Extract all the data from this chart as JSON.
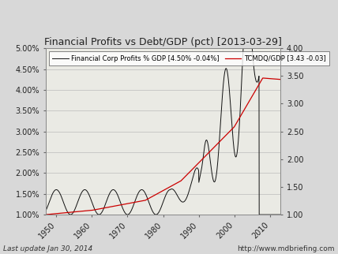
{
  "title": "Financial Profits vs Debt/GDP (pct) [2013-03-29]",
  "legend1": "Financial Corp Profits % GDP [4.50% -0.04%]",
  "legend2": "TCMDQ/GDP [3.43 -0.03]",
  "left_ylim": [
    0.01,
    0.05
  ],
  "right_ylim": [
    1.0,
    4.0
  ],
  "left_yticks": [
    0.01,
    0.015,
    0.02,
    0.025,
    0.03,
    0.035,
    0.04,
    0.045,
    0.05
  ],
  "left_yticklabels": [
    "1.00%",
    "1.50%",
    "2.00%",
    "2.50%",
    "3.00%",
    "3.50%",
    "4.00%",
    "4.50%",
    "5.00%"
  ],
  "right_yticks": [
    1.0,
    1.5,
    2.0,
    2.5,
    3.0,
    3.5,
    4.0
  ],
  "right_yticklabels": [
    "1.00",
    "1.50",
    "2.00",
    "2.50",
    "3.00",
    "3.50",
    "4.00"
  ],
  "xlim": [
    1947,
    2013
  ],
  "xticks": [
    1950,
    1960,
    1970,
    1980,
    1990,
    2000,
    2010
  ],
  "footer_left": "Last update Jan 30, 2014",
  "footer_right": "http://www.mdbriefing.com",
  "bg_color": "#d8d8d8",
  "plot_bg_color": "#eaeae4",
  "line1_color": "#111111",
  "line2_color": "#cc0000",
  "title_fontsize": 9,
  "tick_fontsize": 7,
  "legend_fontsize": 6,
  "footer_fontsize": 6.5
}
